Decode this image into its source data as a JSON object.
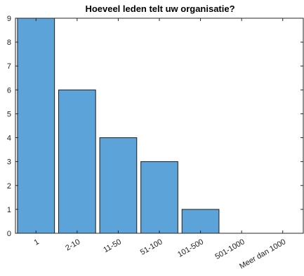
{
  "chart_data": {
    "type": "bar",
    "title": "Hoeveel leden telt uw organisatie?",
    "xlabel": "",
    "ylabel": "",
    "categories": [
      "1",
      "2-10",
      "11-50",
      "51-100",
      "101-500",
      "501-1000",
      "Meer dan 1000"
    ],
    "values": [
      9,
      6,
      4,
      3,
      1,
      0,
      0
    ],
    "ylim": [
      0,
      9
    ],
    "yticks": [
      0,
      1,
      2,
      3,
      4,
      5,
      6,
      7,
      8,
      9
    ],
    "grid": false,
    "legend": "none",
    "colors": {
      "bar_fill": "#5ba3d9",
      "bar_stroke": "#1f1f1f",
      "axis": "#262626"
    }
  }
}
